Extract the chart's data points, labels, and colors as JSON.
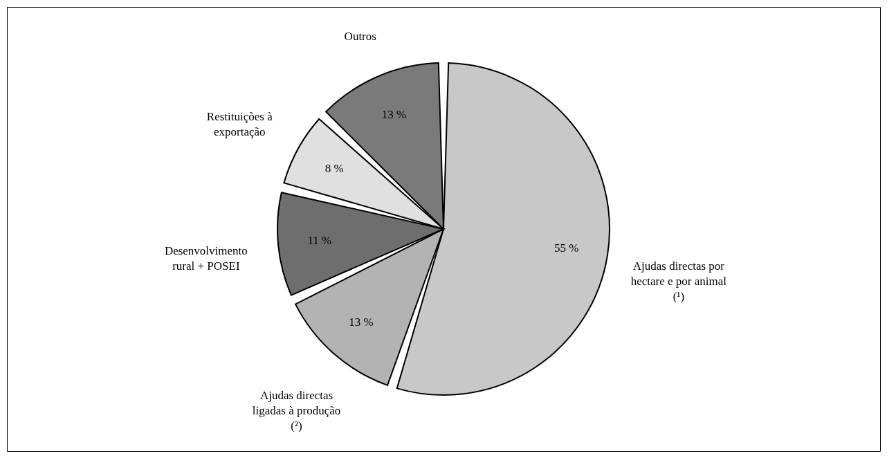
{
  "chart_data": {
    "type": "pie",
    "categories": [
      "Ajudas directas por hectare e por animal (¹)",
      "Ajudas directas ligadas à produção (²)",
      "Desenvolvimento rural + POSEI",
      "Restituições à exportação",
      "Outros"
    ],
    "values": [
      55,
      13,
      11,
      8,
      13
    ],
    "colors": [
      "#c8c8c8",
      "#b3b3b3",
      "#6e6e6e",
      "#e0e0e0",
      "#7a7a7a"
    ],
    "value_labels": [
      "55 %",
      "13 %",
      "11 %",
      "8 %",
      "13 %"
    ]
  }
}
